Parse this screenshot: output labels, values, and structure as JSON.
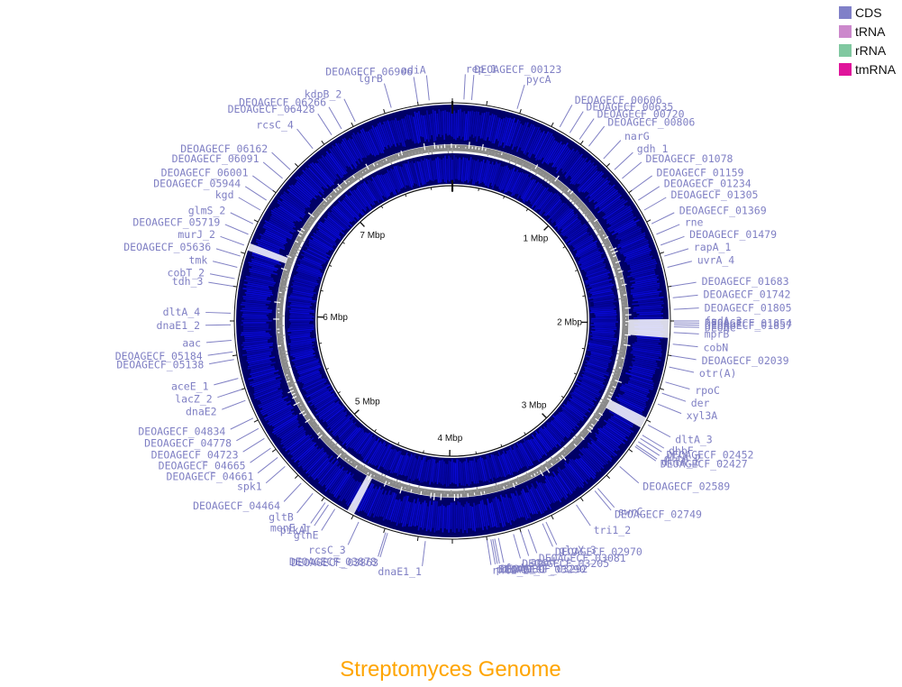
{
  "title": "Streptomyces Genome",
  "colors": {
    "title": "#ffa500",
    "cds": "#0a0adc",
    "cds_dark": "#000066",
    "gc": "#808080",
    "label": "#8080c4"
  },
  "legend": [
    {
      "label": "CDS",
      "color": "#8080c8"
    },
    {
      "label": "tRNA",
      "color": "#cc88cc"
    },
    {
      "label": "rRNA",
      "color": "#80c8a0"
    },
    {
      "label": "tmRNA",
      "color": "#e0149b"
    }
  ],
  "genome": {
    "total_mbp": 7.95,
    "tick_labels": [
      {
        "label": "1 Mbp",
        "mbp": 1
      },
      {
        "label": "2 Mbp",
        "mbp": 2
      },
      {
        "label": "3 Mbp",
        "mbp": 3
      },
      {
        "label": "4 Mbp",
        "mbp": 4
      },
      {
        "label": "5 Mbp",
        "mbp": 5
      },
      {
        "label": "6 Mbp",
        "mbp": 6
      },
      {
        "label": "7 Mbp",
        "mbp": 7
      }
    ]
  },
  "gene_labels": [
    {
      "label": "rep_1",
      "angle": 3
    },
    {
      "label": "DEOAGECF_00123",
      "angle": 5
    },
    {
      "label": "pycA",
      "angle": 17
    },
    {
      "label": "DEOAGECF_00606",
      "angle": 29
    },
    {
      "label": "DEOAGECF_00635",
      "angle": 32
    },
    {
      "label": "DEOAGECF_00720",
      "angle": 35
    },
    {
      "label": "DEOAGECF_00806",
      "angle": 38
    },
    {
      "label": "narG",
      "angle": 43
    },
    {
      "label": "gdh_1",
      "angle": 47
    },
    {
      "label": "DEOAGECF_01078",
      "angle": 50
    },
    {
      "label": "DEOAGECF_01159",
      "angle": 54
    },
    {
      "label": "DEOAGECF_01234",
      "angle": 57
    },
    {
      "label": "DEOAGECF_01305",
      "angle": 60
    },
    {
      "label": "DEOAGECF_01369",
      "angle": 64
    },
    {
      "label": "rne",
      "angle": 67
    },
    {
      "label": "DEOAGECF_01479",
      "angle": 70
    },
    {
      "label": "rapA_1",
      "angle": 73
    },
    {
      "label": "uvrA_4",
      "angle": 76
    },
    {
      "label": "DEOAGECF_01683",
      "angle": 81
    },
    {
      "label": "DEOAGECF_01742",
      "angle": 84
    },
    {
      "label": "DEOAGECF_01805",
      "angle": 87
    },
    {
      "label": "fadA_3",
      "angle": 90
    },
    {
      "label": "DEOAGECF_01854",
      "angle": 90.5
    },
    {
      "label": "DEOAGECF_01857",
      "angle": 91
    },
    {
      "label": "DEOAC",
      "angle": 91.5
    },
    {
      "label": "mprB",
      "angle": 93
    },
    {
      "label": "cobN",
      "angle": 96
    },
    {
      "label": "DEOAGECF_02039",
      "angle": 99
    },
    {
      "label": "otr(A)",
      "angle": 102
    },
    {
      "label": "rpoC",
      "angle": 106
    },
    {
      "label": "der",
      "angle": 109
    },
    {
      "label": "xyl3A",
      "angle": 112
    },
    {
      "label": "dltA_3",
      "angle": 118
    },
    {
      "label": "dhbF",
      "angle": 121
    },
    {
      "label": "DEOAGECF_02452",
      "angle": 122
    },
    {
      "label": "dltA_2",
      "angle": 123
    },
    {
      "label": "dltA_1",
      "angle": 124
    },
    {
      "label": "DEOAGECF_02427",
      "angle": 124.5
    },
    {
      "label": "DEOAGECF_02589",
      "angle": 131
    },
    {
      "label": "swrC",
      "angle": 139
    },
    {
      "label": "DEOAGECF_02749",
      "angle": 140
    },
    {
      "label": "tri1_2",
      "angle": 146
    },
    {
      "label": "glgX_3",
      "angle": 155
    },
    {
      "label": "DEOAGECF_02970",
      "angle": 156
    },
    {
      "label": "DEOAGECF_03081",
      "angle": 160
    },
    {
      "label": "apaH",
      "angle": 162
    },
    {
      "label": "DEOAGECF_03205",
      "angle": 164
    },
    {
      "label": "fadA_4",
      "angle": 168
    },
    {
      "label": "DEOAGECF_03292",
      "angle": 169
    },
    {
      "label": "DEOAGECF_03290",
      "angle": 169.5
    },
    {
      "label": "pikAII_1",
      "angle": 170
    },
    {
      "label": "rhlE_2",
      "angle": 171
    },
    {
      "label": "dnaE1_1",
      "angle": 187
    },
    {
      "label": "DEOAGECF_03863",
      "angle": 197
    },
    {
      "label": "DEOAGECF_03878",
      "angle": 197.5
    },
    {
      "label": "rcsC_3",
      "angle": 205
    },
    {
      "label": "glnE",
      "angle": 212
    },
    {
      "label": "pikAI",
      "angle": 214
    },
    {
      "label": "menE_1",
      "angle": 215
    },
    {
      "label": "gltB",
      "angle": 219
    },
    {
      "label": "DEOAGECF_04464",
      "angle": 223
    },
    {
      "label": "spk1",
      "angle": 229
    },
    {
      "label": "DEOAGECF_04661",
      "angle": 232
    },
    {
      "label": "DEOAGECF_04665",
      "angle": 235
    },
    {
      "label": "DEOAGECF_04723",
      "angle": 238
    },
    {
      "label": "DEOAGECF_04778",
      "angle": 241
    },
    {
      "label": "DEOAGECF_04834",
      "angle": 244
    },
    {
      "label": "dnaE2",
      "angle": 249
    },
    {
      "label": "lacZ_2",
      "angle": 252
    },
    {
      "label": "aceE_1",
      "angle": 255
    },
    {
      "label": "DEOAGECF_05138",
      "angle": 260
    },
    {
      "label": "DEOAGECF_05184",
      "angle": 262
    },
    {
      "label": "aac",
      "angle": 265
    },
    {
      "label": "dnaE1_2",
      "angle": 269
    },
    {
      "label": "dltA_4",
      "angle": 272
    },
    {
      "label": "tdh_3",
      "angle": 279
    },
    {
      "label": "cobT_2",
      "angle": 281
    },
    {
      "label": "tmk",
      "angle": 284
    },
    {
      "label": "DEOAGECF_05636",
      "angle": 287
    },
    {
      "label": "murJ_2",
      "angle": 290
    },
    {
      "label": "DEOAGECF_05719",
      "angle": 293
    },
    {
      "label": "glmS_2",
      "angle": 296
    },
    {
      "label": "kgd",
      "angle": 300
    },
    {
      "label": "DEOAGECF_05944",
      "angle": 303
    },
    {
      "label": "DEOAGECF_06001",
      "angle": 306
    },
    {
      "label": "DEOAGECF_06091",
      "angle": 310
    },
    {
      "label": "DEOAGECF_06162",
      "angle": 313
    },
    {
      "label": "rcsC_4",
      "angle": 321
    },
    {
      "label": "DEOAGECF_06428",
      "angle": 327
    },
    {
      "label": "DEOAGECF_06266",
      "angle": 330
    },
    {
      "label": "kdpB_2",
      "angle": 334
    },
    {
      "label": "lgrB",
      "angle": 344
    },
    {
      "label": "DEOAGECF_06906",
      "angle": 351
    },
    {
      "label": "adiA",
      "angle": 354
    }
  ]
}
